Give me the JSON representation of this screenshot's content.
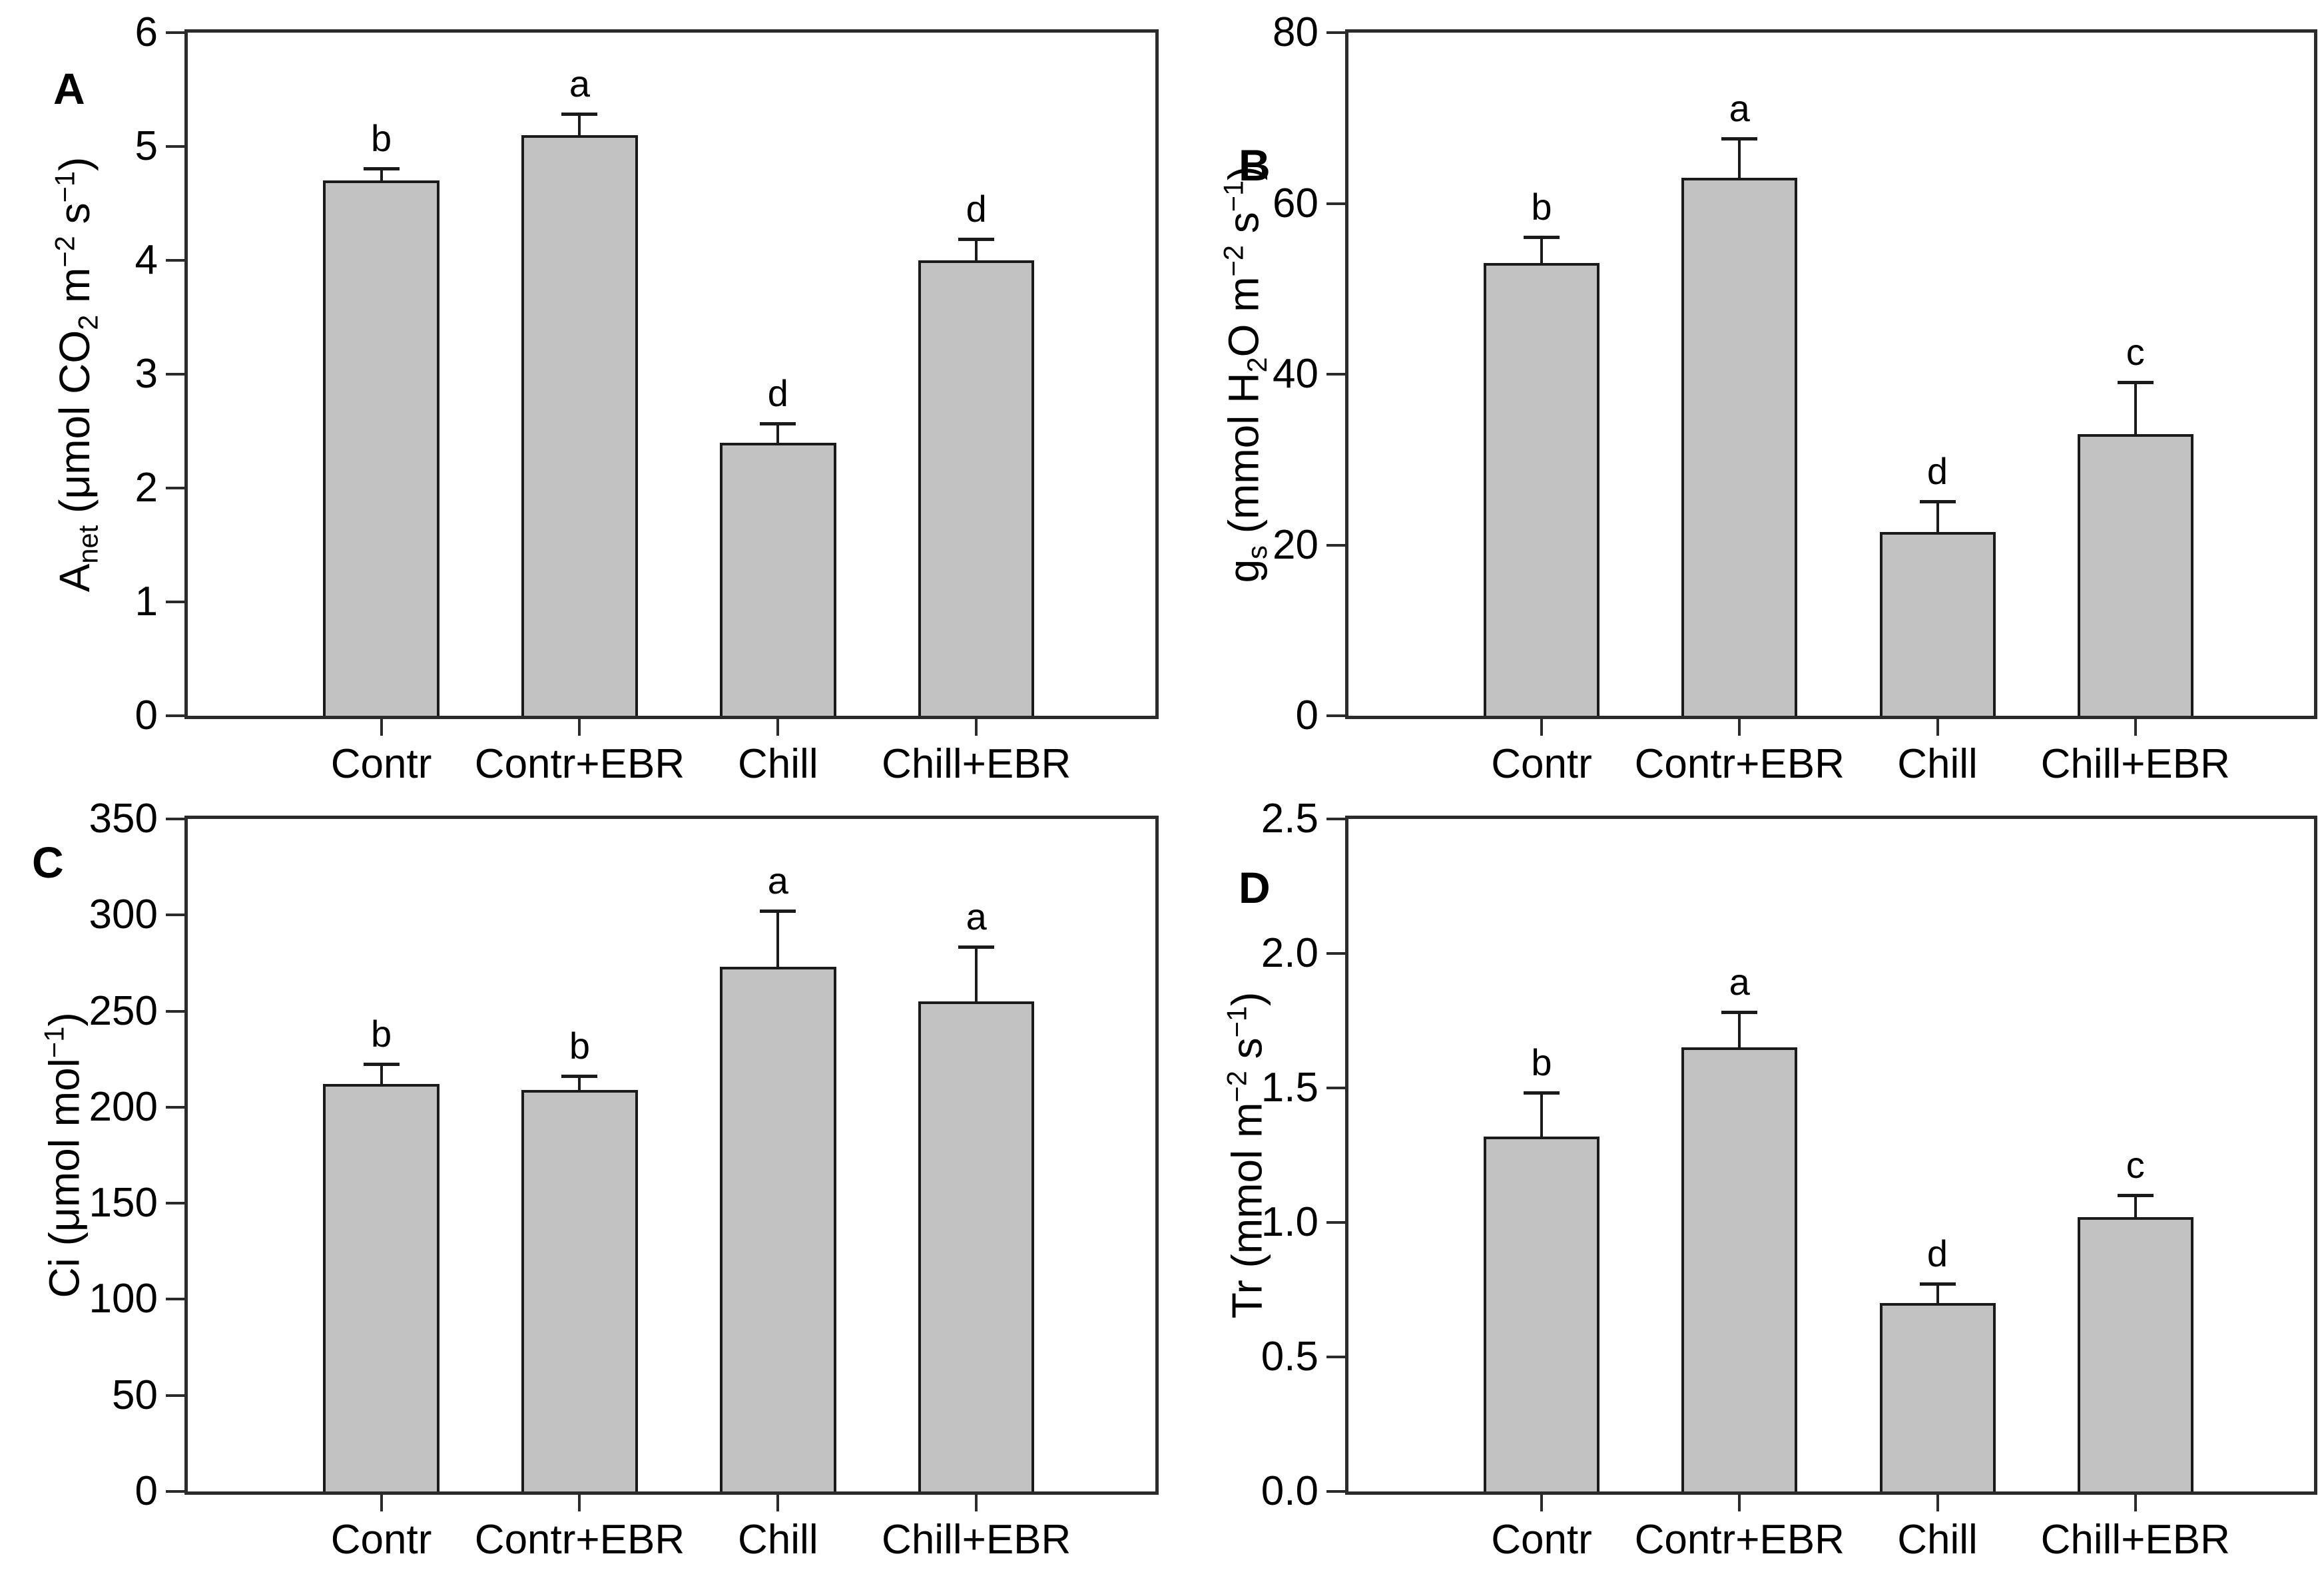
{
  "figure": {
    "background": "#ffffff",
    "bar_fill": "#c2c2c2",
    "bar_edge": "#1a1a1a",
    "axis_color": "#2b2b2b",
    "text_color": "#000000"
  },
  "chart_data": [
    {
      "type": "bar",
      "panel_letter": "A",
      "title": "",
      "xlabel": "",
      "ylabel": "Anet (μmol CO2 m−2 s−1)",
      "ylabel_parts": [
        {
          "t": "A"
        },
        {
          "t": "net",
          "s": "sub"
        },
        {
          "t": " (μmol CO"
        },
        {
          "t": "2",
          "s": "sub"
        },
        {
          "t": " m"
        },
        {
          "t": "−2",
          "s": "sup"
        },
        {
          "t": " s"
        },
        {
          "t": "−1",
          "s": "sup"
        },
        {
          "t": ")"
        }
      ],
      "categories": [
        "Contr",
        "Contr+EBR",
        "Chill",
        "Chill+EBR"
      ],
      "values": [
        4.7,
        5.1,
        2.4,
        4.0
      ],
      "errors_plus": [
        0.1,
        0.18,
        0.16,
        0.18
      ],
      "sig_letters": [
        "b",
        "a",
        "d",
        "d"
      ],
      "ylim": [
        0,
        6
      ],
      "ytick_vals": [
        0,
        1,
        2,
        3,
        4,
        5,
        6
      ],
      "ytick_labels": [
        "0",
        "1",
        "2",
        "3",
        "4",
        "5",
        "6"
      ],
      "grid": false,
      "legend": "none"
    },
    {
      "type": "bar",
      "panel_letter": "B",
      "title": "",
      "xlabel": "",
      "ylabel": "gs (mmol H2O m−2 s−1)",
      "ylabel_parts": [
        {
          "t": "g"
        },
        {
          "t": "s",
          "s": "sub"
        },
        {
          "t": " (mmol H"
        },
        {
          "t": "2",
          "s": "sub"
        },
        {
          "t": "O m"
        },
        {
          "t": "−2",
          "s": "sup"
        },
        {
          "t": " s"
        },
        {
          "t": "−1",
          "s": "sup"
        },
        {
          "t": ")"
        }
      ],
      "categories": [
        "Contr",
        "Contr+EBR",
        "Chill",
        "Chill+EBR"
      ],
      "values": [
        53,
        63,
        21.5,
        33
      ],
      "errors_plus": [
        3,
        4.5,
        3.5,
        6
      ],
      "sig_letters": [
        "b",
        "a",
        "d",
        "c"
      ],
      "ylim": [
        0,
        80
      ],
      "ytick_vals": [
        0,
        20,
        40,
        60,
        80
      ],
      "ytick_labels": [
        "0",
        "20",
        "40",
        "60",
        "80"
      ],
      "grid": false,
      "legend": "none"
    },
    {
      "type": "bar",
      "panel_letter": "C",
      "title": "",
      "xlabel": "",
      "ylabel": "Ci (μmol mol−1)",
      "ylabel_parts": [
        {
          "t": "Ci (μmol mol"
        },
        {
          "t": "−1",
          "s": "sup"
        },
        {
          "t": ")"
        }
      ],
      "categories": [
        "Contr",
        "Contr+EBR",
        "Chill",
        "Chill+EBR"
      ],
      "values": [
        212,
        209,
        273,
        255
      ],
      "errors_plus": [
        10,
        7,
        29,
        28
      ],
      "sig_letters": [
        "b",
        "b",
        "a",
        "a"
      ],
      "ylim": [
        0,
        350
      ],
      "ytick_vals": [
        0,
        50,
        100,
        150,
        200,
        250,
        300,
        350
      ],
      "ytick_labels": [
        "0",
        "50",
        "100",
        "150",
        "200",
        "250",
        "300",
        "350"
      ],
      "grid": false,
      "legend": "none"
    },
    {
      "type": "bar",
      "panel_letter": "D",
      "title": "",
      "xlabel": "",
      "ylabel": "Tr (mmol m−2 s−1)",
      "ylabel_parts": [
        {
          "t": "Tr (mmol m"
        },
        {
          "t": "−2",
          "s": "sup"
        },
        {
          "t": " s"
        },
        {
          "t": "−1",
          "s": "sup"
        },
        {
          "t": ")"
        }
      ],
      "categories": [
        "Contr",
        "Contr+EBR",
        "Chill",
        "Chill+EBR"
      ],
      "values": [
        1.32,
        1.65,
        0.7,
        1.02
      ],
      "errors_plus": [
        0.16,
        0.13,
        0.07,
        0.08
      ],
      "sig_letters": [
        "b",
        "a",
        "d",
        "c"
      ],
      "ylim": [
        0,
        2.5
      ],
      "ytick_vals": [
        0,
        0.5,
        1.0,
        1.5,
        2.0,
        2.5
      ],
      "ytick_labels": [
        "0.0",
        "0.5",
        "1.0",
        "1.5",
        "2.0",
        "2.5"
      ],
      "grid": false,
      "legend": "none"
    }
  ]
}
